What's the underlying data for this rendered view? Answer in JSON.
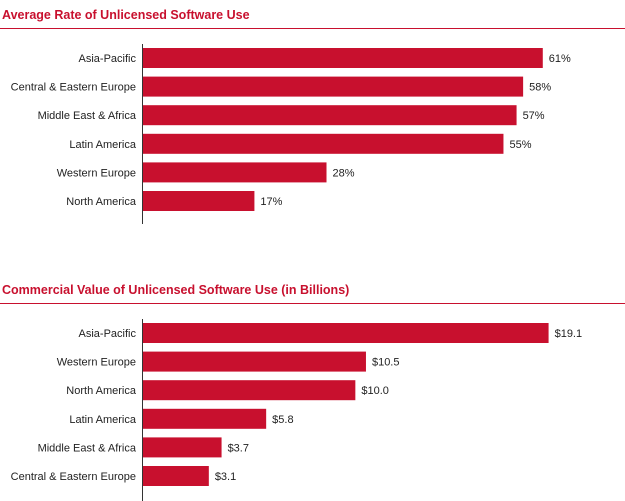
{
  "chart_data": [
    {
      "type": "bar",
      "orientation": "horizontal",
      "title": "Average Rate of Unlicensed Software Use",
      "categories": [
        "Asia-Pacific",
        "Central & Eastern Europe",
        "Middle East & Africa",
        "Latin America",
        "Western Europe",
        "North America"
      ],
      "values": [
        61,
        58,
        57,
        55,
        28,
        17
      ],
      "value_labels": [
        "61%",
        "58%",
        "57%",
        "55%",
        "28%",
        "17%"
      ],
      "unit": "%",
      "xlim": [
        0,
        65
      ],
      "grid": false,
      "bar_color": "#c8102e"
    },
    {
      "type": "bar",
      "orientation": "horizontal",
      "title": "Commercial Value of Unlicensed Software Use (in Billions)",
      "categories": [
        "Asia-Pacific",
        "Western Europe",
        "North America",
        "Latin America",
        "Middle East & Africa",
        "Central & Eastern Europe"
      ],
      "values": [
        19.1,
        10.5,
        10.0,
        5.8,
        3.7,
        3.1
      ],
      "value_labels": [
        "$19.1",
        "$10.5",
        "$10.0",
        "$5.8",
        "$3.7",
        "$3.1"
      ],
      "unit": "$ billions",
      "xlim": [
        0,
        20.25
      ],
      "grid": false,
      "bar_color": "#c8102e"
    }
  ]
}
